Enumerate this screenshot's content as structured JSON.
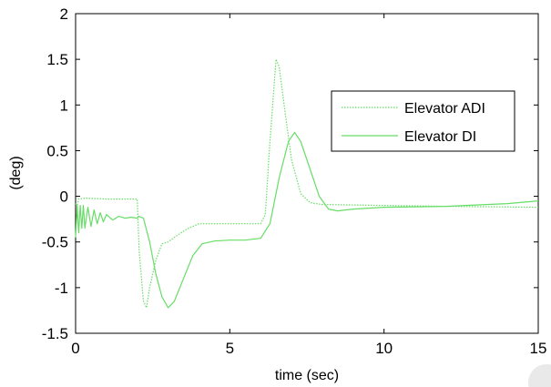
{
  "chart_data": {
    "type": "line",
    "xlabel": "time (sec)",
    "ylabel": "(deg)",
    "xlim": [
      0,
      15
    ],
    "ylim": [
      -1.5,
      2
    ],
    "xticks": [
      "0",
      "5",
      "10",
      "15"
    ],
    "xtick_values": [
      0,
      5,
      10,
      15
    ],
    "yticks": [
      "2",
      "1.5",
      "1",
      "0.5",
      "0",
      "-0.5",
      "-1",
      "-1.5"
    ],
    "ytick_values": [
      2,
      1.5,
      1,
      0.5,
      0,
      -0.5,
      -1,
      -1.5
    ],
    "grid": false,
    "legend_position": "upper-right",
    "series_color": "#66dd66",
    "series": [
      {
        "name": "Elevator ADI",
        "color": "#66dd66",
        "style": "dotted",
        "points": [
          [
            0,
            -0.08
          ],
          [
            0.05,
            -0.1
          ],
          [
            0.1,
            -0.03
          ],
          [
            0.3,
            -0.02
          ],
          [
            1,
            -0.03
          ],
          [
            2,
            -0.03
          ],
          [
            2.06,
            -0.6
          ],
          [
            2.2,
            -1.15
          ],
          [
            2.3,
            -1.22
          ],
          [
            2.4,
            -1.0
          ],
          [
            2.6,
            -0.7
          ],
          [
            2.8,
            -0.52
          ],
          [
            3.0,
            -0.5
          ],
          [
            3.2,
            -0.45
          ],
          [
            3.6,
            -0.36
          ],
          [
            4.0,
            -0.3
          ],
          [
            5.0,
            -0.3
          ],
          [
            6.0,
            -0.3
          ],
          [
            6.15,
            -0.2
          ],
          [
            6.3,
            0.6
          ],
          [
            6.5,
            1.5
          ],
          [
            6.6,
            1.42
          ],
          [
            6.8,
            0.9
          ],
          [
            7.0,
            0.4
          ],
          [
            7.3,
            0.03
          ],
          [
            7.6,
            -0.07
          ],
          [
            8.0,
            -0.09
          ],
          [
            10.0,
            -0.1
          ],
          [
            12.0,
            -0.11
          ],
          [
            15.0,
            -0.12
          ]
        ]
      },
      {
        "name": "Elevator DI",
        "color": "#66dd66",
        "style": "solid",
        "points": [
          [
            0,
            -0.45
          ],
          [
            0.05,
            -0.1
          ],
          [
            0.1,
            -0.4
          ],
          [
            0.15,
            -0.1
          ],
          [
            0.2,
            -0.35
          ],
          [
            0.25,
            -0.1
          ],
          [
            0.3,
            -0.35
          ],
          [
            0.4,
            -0.12
          ],
          [
            0.5,
            -0.33
          ],
          [
            0.6,
            -0.15
          ],
          [
            0.7,
            -0.3
          ],
          [
            0.8,
            -0.18
          ],
          [
            0.9,
            -0.28
          ],
          [
            1.0,
            -0.2
          ],
          [
            1.2,
            -0.26
          ],
          [
            1.4,
            -0.22
          ],
          [
            1.6,
            -0.24
          ],
          [
            1.8,
            -0.23
          ],
          [
            2.0,
            -0.24
          ],
          [
            2.05,
            -0.22
          ],
          [
            2.2,
            -0.24
          ],
          [
            2.4,
            -0.5
          ],
          [
            2.6,
            -0.85
          ],
          [
            2.8,
            -1.1
          ],
          [
            3.0,
            -1.22
          ],
          [
            3.2,
            -1.15
          ],
          [
            3.5,
            -0.9
          ],
          [
            3.8,
            -0.65
          ],
          [
            4.1,
            -0.52
          ],
          [
            4.5,
            -0.49
          ],
          [
            5.0,
            -0.48
          ],
          [
            5.5,
            -0.48
          ],
          [
            6.0,
            -0.46
          ],
          [
            6.3,
            -0.3
          ],
          [
            6.6,
            0.2
          ],
          [
            6.9,
            0.6
          ],
          [
            7.1,
            0.7
          ],
          [
            7.3,
            0.6
          ],
          [
            7.6,
            0.3
          ],
          [
            7.9,
            0.0
          ],
          [
            8.2,
            -0.14
          ],
          [
            8.5,
            -0.16
          ],
          [
            9.0,
            -0.14
          ],
          [
            10.0,
            -0.12
          ],
          [
            12.0,
            -0.11
          ],
          [
            14.0,
            -0.08
          ],
          [
            15.0,
            -0.05
          ]
        ]
      }
    ]
  }
}
